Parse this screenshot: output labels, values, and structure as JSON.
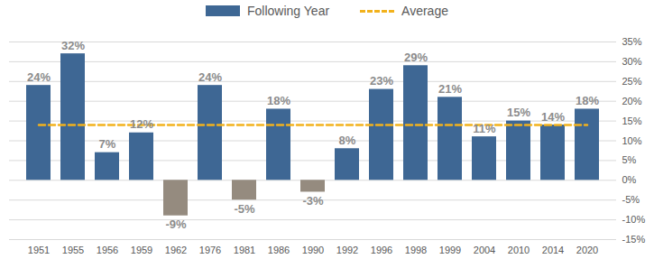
{
  "chart_data": {
    "type": "bar",
    "categories": [
      "1951",
      "1955",
      "1956",
      "1959",
      "1962",
      "1976",
      "1981",
      "1986",
      "1990",
      "1992",
      "1996",
      "1998",
      "1999",
      "2004",
      "2010",
      "2014",
      "2020"
    ],
    "series": [
      {
        "name": "Following Year",
        "type": "bar",
        "color": "#3e6794",
        "colors": [
          "#3e6794",
          "#3e6794",
          "#3e6794",
          "#3e6794",
          "#958b7f",
          "#3e6794",
          "#958b7f",
          "#3e6794",
          "#958b7f",
          "#3e6794",
          "#3e6794",
          "#3e6794",
          "#3e6794",
          "#3e6794",
          "#3e6794",
          "#3e6794",
          "#3e6794"
        ],
        "values": [
          24,
          32,
          7,
          12,
          -9,
          24,
          -5,
          18,
          -3,
          8,
          23,
          29,
          21,
          11,
          15,
          14,
          18
        ],
        "value_labels": [
          "24%",
          "32%",
          "7%",
          "12%",
          "-9%",
          "24%",
          "-5%",
          "18%",
          "-3%",
          "8%",
          "23%",
          "29%",
          "21%",
          "11%",
          "15%",
          "14%",
          "18%"
        ]
      },
      {
        "name": "Average",
        "type": "line",
        "line_style": "dashed",
        "color": "#f2b21c",
        "values": [
          14,
          14,
          14,
          14,
          14,
          14,
          14,
          14,
          14,
          14,
          14,
          14,
          14,
          14,
          14,
          14,
          14
        ]
      }
    ],
    "ylim": [
      -15,
      35
    ],
    "yticks": [
      {
        "value": -15,
        "label": "-15%"
      },
      {
        "value": -10,
        "label": "-10%"
      },
      {
        "value": -5,
        "label": "-5%"
      },
      {
        "value": 0,
        "label": "0%"
      },
      {
        "value": 5,
        "label": "5%"
      },
      {
        "value": 10,
        "label": "10%"
      },
      {
        "value": 15,
        "label": "15%"
      },
      {
        "value": 20,
        "label": "20%"
      },
      {
        "value": 25,
        "label": "25%"
      },
      {
        "value": 30,
        "label": "30%"
      },
      {
        "value": 35,
        "label": "35%"
      }
    ],
    "grid": true,
    "legend": "top",
    "data_labels": true
  }
}
